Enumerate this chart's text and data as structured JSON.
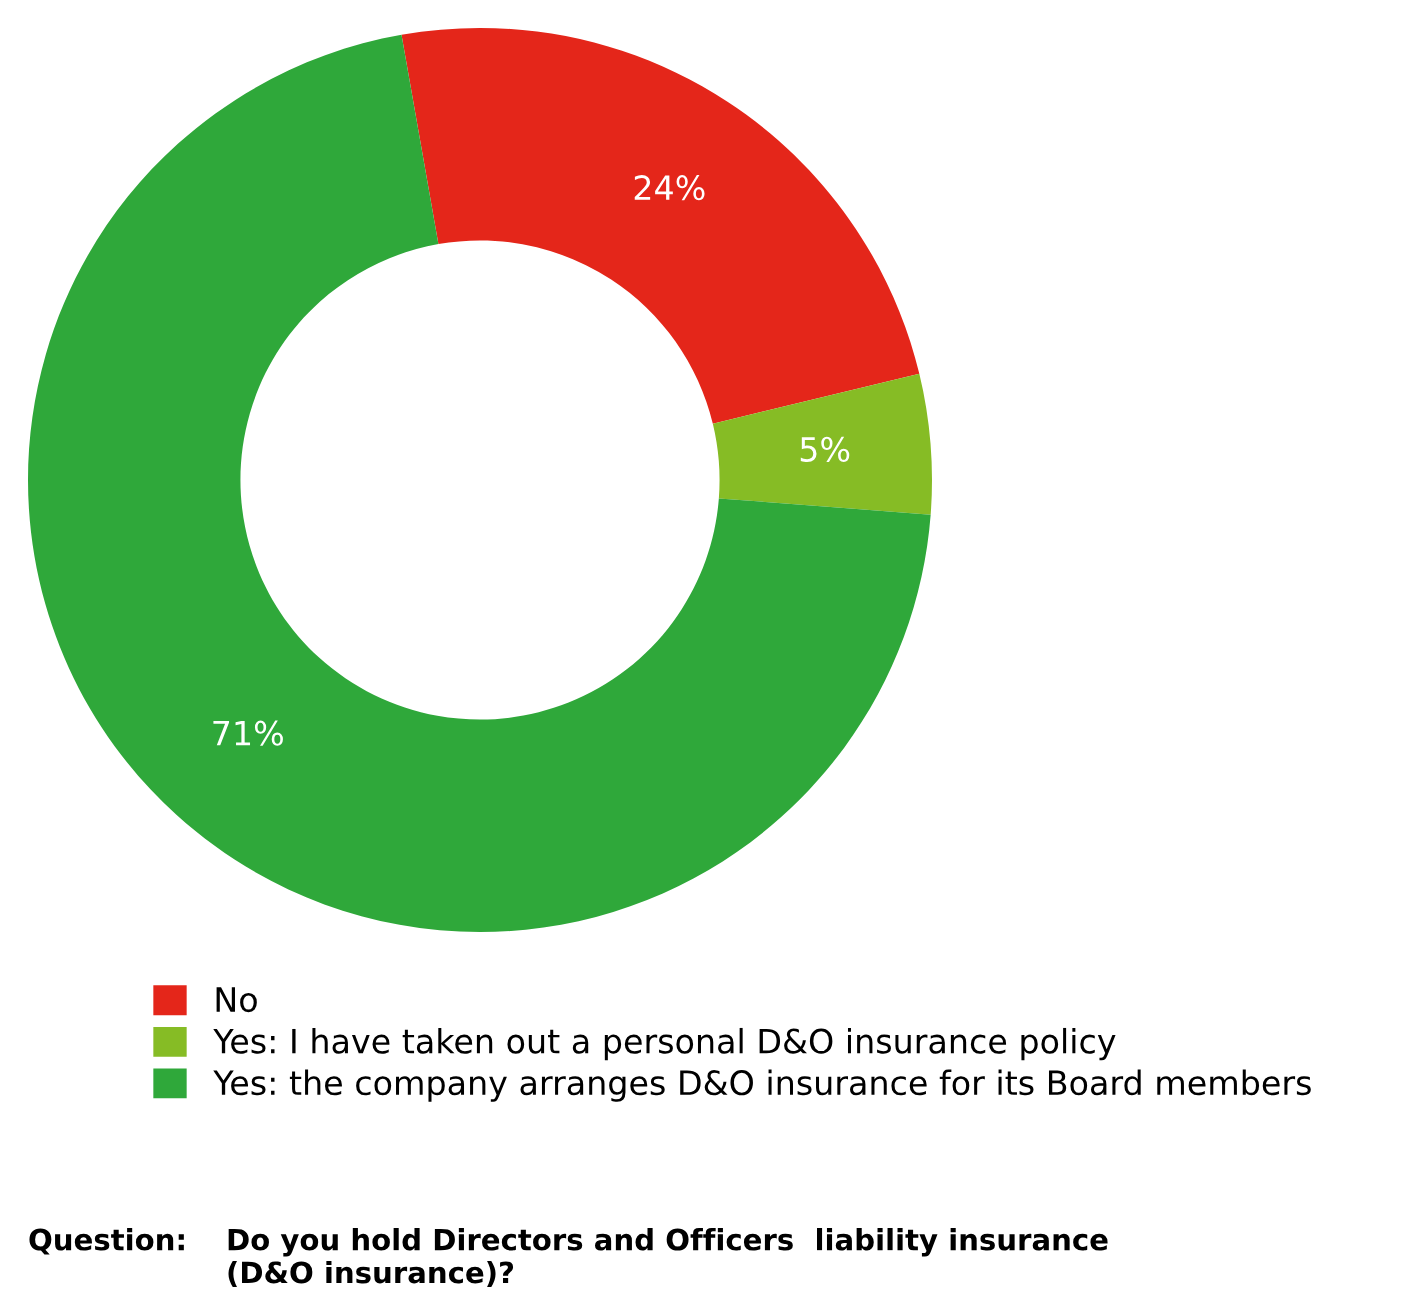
{
  "chart_data": {
    "type": "donut",
    "categories": [
      "No",
      "Yes: I have taken out a personal D&O insurance policy",
      "Yes: the company arranges D&O insurance for its Board members"
    ],
    "values": [
      24,
      5,
      71
    ],
    "colors": [
      "#e4261a",
      "#86bc25",
      "#2fa83a"
    ],
    "value_labels": [
      "24%",
      "5%",
      "71%"
    ],
    "legend": "bottom",
    "annotations": [
      "Question:",
      "Do you hold Directors and Officers  liability insurance\n(D&O insurance)?"
    ]
  }
}
